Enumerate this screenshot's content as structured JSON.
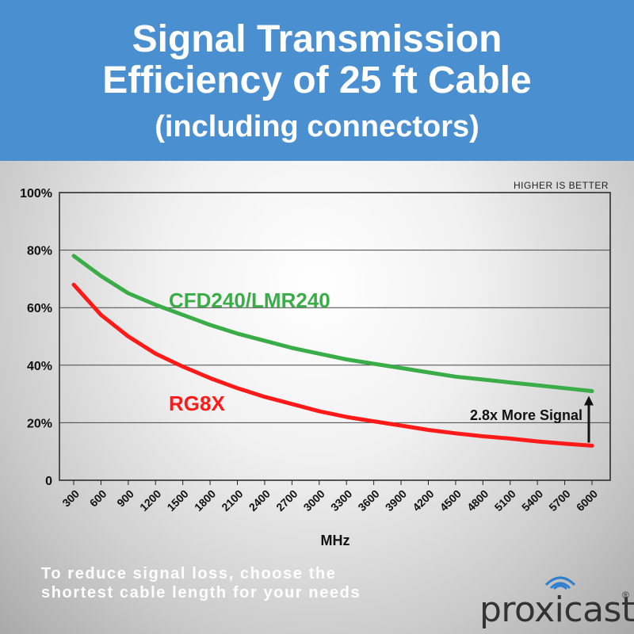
{
  "header": {
    "title_line1": "Signal Transmission",
    "title_line2": "Efficiency of 25 ft Cable",
    "title_line3": "(including connectors)"
  },
  "chart_data": {
    "type": "line",
    "note": "HIGHER IS BETTER",
    "xlabel": "MHz",
    "ylabel": "",
    "categories": [
      "300",
      "600",
      "900",
      "1200",
      "1500",
      "1800",
      "2100",
      "2400",
      "2700",
      "3000",
      "3300",
      "3600",
      "3900",
      "4200",
      "4500",
      "4800",
      "5100",
      "5400",
      "5700",
      "6000"
    ],
    "ytick_labels": [
      "0",
      "20%",
      "40%",
      "60%",
      "80%",
      "100%"
    ],
    "ylim": [
      0,
      100
    ],
    "grid": true,
    "series": [
      {
        "name": "CFD240/LMR240",
        "color": "#3aad48",
        "values": [
          78,
          71,
          65,
          61,
          57.5,
          54,
          51,
          48.5,
          46,
          44,
          42,
          40.5,
          39,
          37.5,
          36,
          35,
          34,
          33,
          32,
          31
        ]
      },
      {
        "name": "RG8X",
        "color": "#ff1a1a",
        "values": [
          68,
          57.5,
          50,
          44,
          39.5,
          35.5,
          32,
          29,
          26.5,
          24,
          22,
          20.5,
          19,
          17.5,
          16.3,
          15.3,
          14.5,
          13.5,
          12.7,
          12
        ]
      }
    ],
    "annotation": "2.8x More Signal"
  },
  "footer": {
    "line1": "To reduce signal loss, choose the",
    "line2": "shortest cable length for your needs"
  },
  "brand": {
    "name": "proxicast",
    "reg_mark": "®"
  }
}
